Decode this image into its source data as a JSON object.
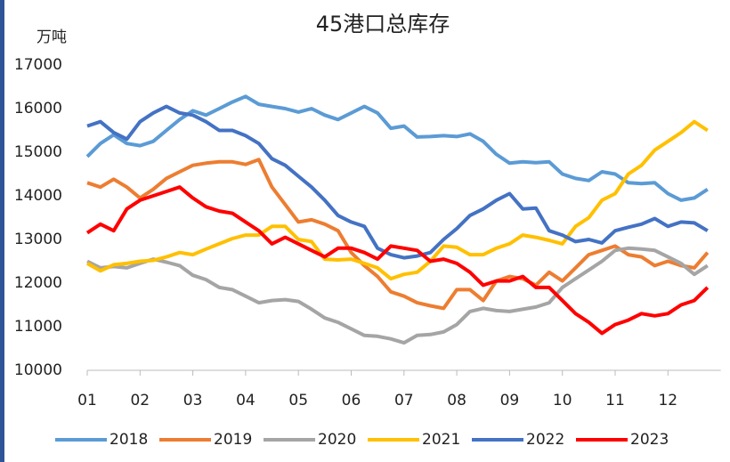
{
  "chart_data": {
    "type": "line",
    "title": "45港口总库存",
    "y_label": "万吨",
    "x": [
      1,
      1.25,
      1.5,
      1.75,
      2,
      2.25,
      2.5,
      2.75,
      3,
      3.25,
      3.5,
      3.75,
      4,
      4.25,
      4.5,
      4.75,
      5,
      5.25,
      5.5,
      5.75,
      6,
      6.25,
      6.5,
      6.75,
      7,
      7.25,
      7.5,
      7.75,
      8,
      8.25,
      8.5,
      8.75,
      9,
      9.25,
      9.5,
      9.75,
      10,
      10.25,
      10.5,
      10.75,
      11,
      11.25,
      11.5,
      11.75,
      12,
      12.25,
      12.5,
      12.75
    ],
    "series": [
      {
        "name": "2018",
        "color": "#5b9bd5",
        "values": [
          14900,
          15200,
          15400,
          15200,
          15150,
          15250,
          15500,
          15750,
          15950,
          15850,
          16000,
          16150,
          16280,
          16100,
          16050,
          16000,
          15920,
          16000,
          15850,
          15750,
          15900,
          16050,
          15900,
          15550,
          15600,
          15350,
          15360,
          15380,
          15360,
          15420,
          15250,
          14950,
          14750,
          14780,
          14760,
          14780,
          14500,
          14400,
          14350,
          14550,
          14500,
          14300,
          14280,
          14300,
          14050,
          13900,
          13950,
          14150
        ]
      },
      {
        "name": "2019",
        "color": "#ed7d31",
        "values": [
          14300,
          14200,
          14380,
          14200,
          13950,
          14150,
          14400,
          14550,
          14700,
          14750,
          14780,
          14780,
          14720,
          14830,
          14200,
          13800,
          13400,
          13450,
          13350,
          13200,
          12700,
          12400,
          12150,
          11800,
          11700,
          11550,
          11480,
          11420,
          11850,
          11850,
          11600,
          12050,
          12150,
          12100,
          11950,
          12250,
          12050,
          12350,
          12650,
          12750,
          12850,
          12650,
          12600,
          12400,
          12500,
          12400,
          12350,
          12700
        ]
      },
      {
        "name": "2020",
        "color": "#a5a5a5",
        "values": [
          12500,
          12350,
          12380,
          12350,
          12450,
          12550,
          12480,
          12400,
          12180,
          12080,
          11900,
          11850,
          11700,
          11550,
          11600,
          11620,
          11580,
          11400,
          11200,
          11100,
          10950,
          10800,
          10780,
          10720,
          10630,
          10800,
          10820,
          10880,
          11050,
          11350,
          11420,
          11370,
          11350,
          11400,
          11450,
          11550,
          11900,
          12100,
          12300,
          12500,
          12750,
          12800,
          12780,
          12750,
          12600,
          12450,
          12200,
          12400
        ]
      },
      {
        "name": "2021",
        "color": "#ffc000",
        "values": [
          12450,
          12280,
          12420,
          12450,
          12500,
          12520,
          12600,
          12700,
          12650,
          12780,
          12900,
          13020,
          13100,
          13100,
          13300,
          13300,
          13000,
          12950,
          12550,
          12530,
          12550,
          12450,
          12350,
          12100,
          12200,
          12250,
          12500,
          12850,
          12820,
          12650,
          12650,
          12800,
          12900,
          13100,
          13050,
          12980,
          12900,
          13300,
          13500,
          13900,
          14050,
          14500,
          14700,
          15050,
          15250,
          15450,
          15700,
          15500
        ]
      },
      {
        "name": "2022",
        "color": "#4472c4",
        "values": [
          15600,
          15700,
          15450,
          15300,
          15700,
          15900,
          16050,
          15900,
          15850,
          15700,
          15500,
          15500,
          15380,
          15200,
          14850,
          14700,
          14450,
          14200,
          13900,
          13550,
          13400,
          13300,
          12800,
          12650,
          12580,
          12620,
          12700,
          13000,
          13250,
          13550,
          13700,
          13900,
          14050,
          13700,
          13720,
          13200,
          13100,
          12950,
          13000,
          12920,
          13200,
          13280,
          13350,
          13480,
          13300,
          13400,
          13380,
          13200
        ]
      },
      {
        "name": "2023",
        "color": "#ff0000",
        "values": [
          13150,
          13350,
          13200,
          13700,
          13900,
          14000,
          14100,
          14200,
          13950,
          13750,
          13650,
          13600,
          13400,
          13200,
          12900,
          13050,
          12900,
          12750,
          12600,
          12800,
          12800,
          12700,
          12550,
          12850,
          12800,
          12750,
          12500,
          12550,
          12450,
          12250,
          11950,
          12050,
          12050,
          12150,
          11900,
          11900,
          11600,
          11300,
          11100,
          10850,
          11050,
          11150,
          11300,
          11250,
          11300,
          11500,
          11600,
          11900
        ]
      }
    ],
    "xlim": [
      1,
      13
    ],
    "xticks": [
      {
        "value": 1,
        "label": "01"
      },
      {
        "value": 2,
        "label": "02"
      },
      {
        "value": 3,
        "label": "03"
      },
      {
        "value": 4,
        "label": "04"
      },
      {
        "value": 5,
        "label": "05"
      },
      {
        "value": 6,
        "label": "06"
      },
      {
        "value": 7,
        "label": "07"
      },
      {
        "value": 8,
        "label": "08"
      },
      {
        "value": 9,
        "label": "09"
      },
      {
        "value": 10,
        "label": "10"
      },
      {
        "value": 11,
        "label": "11"
      },
      {
        "value": 12,
        "label": "12"
      }
    ],
    "ylim": [
      10000,
      17000
    ],
    "yticks": [
      10000,
      11000,
      12000,
      13000,
      14000,
      15000,
      16000,
      17000
    ],
    "grid": false,
    "legend": "bottom"
  }
}
